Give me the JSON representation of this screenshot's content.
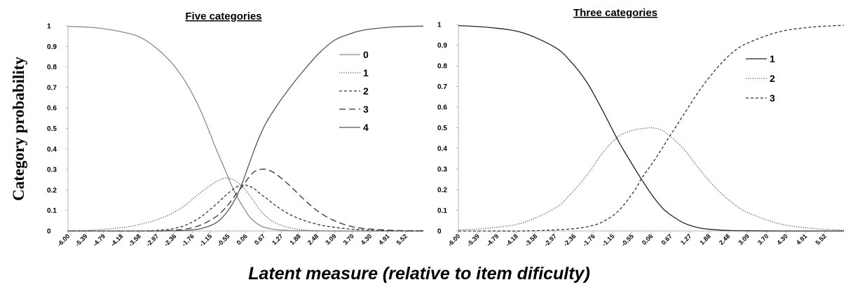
{
  "ylabel": "Category probability",
  "xlabel": "Latent measure (relative to item dificulty)",
  "chart_data": [
    {
      "type": "line",
      "title": "Five categories",
      "ylim": [
        0,
        1
      ],
      "yticks": [
        "0",
        "0.1",
        "0.2",
        "0.3",
        "0.4",
        "0.5",
        "0.6",
        "0.7",
        "0.8",
        "0.9",
        "1"
      ],
      "x_tick_labels": [
        "-6.00",
        "-5.39",
        "-4.79",
        "-4.18",
        "-3.58",
        "-2.97",
        "-2.36",
        "-1.76",
        "-1.15",
        "-0.55",
        "0.06",
        "0.67",
        "1.27",
        "1.88",
        "2.48",
        "3.09",
        "3.70",
        "4.30",
        "4.91",
        "5.52"
      ],
      "xlim": [
        -6.0,
        6.0
      ],
      "grid": false,
      "legend_placement": "top-right",
      "x": [
        -6.0,
        -5.0,
        -4.0,
        -3.5,
        -3.0,
        -2.5,
        -2.0,
        -1.5,
        -1.0,
        -0.7,
        -0.5,
        -0.3,
        -0.1,
        0.1,
        0.3,
        0.5,
        0.7,
        1.0,
        1.5,
        2.0,
        2.5,
        3.0,
        3.5,
        4.0,
        5.0,
        6.0
      ],
      "series": [
        {
          "name": "0",
          "color": "#8a8a8a",
          "dash": "solid",
          "values": [
            0.998,
            0.99,
            0.965,
            0.94,
            0.89,
            0.82,
            0.72,
            0.58,
            0.4,
            0.3,
            0.23,
            0.17,
            0.12,
            0.075,
            0.045,
            0.026,
            0.015,
            0.007,
            0.002,
            0.001,
            0,
            0,
            0,
            0,
            0,
            0
          ]
        },
        {
          "name": "1",
          "color": "#555555",
          "dash": "dotted",
          "values": [
            0.001,
            0.006,
            0.02,
            0.035,
            0.055,
            0.085,
            0.13,
            0.19,
            0.24,
            0.258,
            0.255,
            0.24,
            0.215,
            0.18,
            0.14,
            0.1,
            0.07,
            0.04,
            0.015,
            0.005,
            0.002,
            0,
            0,
            0,
            0,
            0
          ]
        },
        {
          "name": "2",
          "color": "#333333",
          "dash": "short-dash",
          "values": [
            0,
            0,
            0,
            0,
            0.003,
            0.01,
            0.03,
            0.07,
            0.13,
            0.17,
            0.195,
            0.215,
            0.225,
            0.22,
            0.205,
            0.18,
            0.16,
            0.125,
            0.08,
            0.05,
            0.03,
            0.018,
            0.01,
            0.005,
            0.001,
            0
          ]
        },
        {
          "name": "3",
          "color": "#333333",
          "dash": "long-dash",
          "values": [
            0,
            0,
            0,
            0,
            0,
            0.003,
            0.01,
            0.03,
            0.07,
            0.11,
            0.145,
            0.185,
            0.22,
            0.26,
            0.29,
            0.3,
            0.3,
            0.28,
            0.22,
            0.15,
            0.09,
            0.05,
            0.025,
            0.012,
            0.003,
            0.001
          ]
        },
        {
          "name": "4",
          "color": "#555555",
          "dash": "solid",
          "values": [
            0,
            0,
            0,
            0,
            0,
            0.001,
            0.003,
            0.012,
            0.04,
            0.08,
            0.12,
            0.17,
            0.24,
            0.32,
            0.4,
            0.47,
            0.53,
            0.6,
            0.7,
            0.79,
            0.87,
            0.93,
            0.96,
            0.98,
            0.995,
            0.999
          ]
        }
      ]
    },
    {
      "type": "line",
      "title": "Three categories",
      "ylim": [
        0,
        1
      ],
      "yticks": [
        "0",
        "0.1",
        "0.2",
        "0.3",
        "0.4",
        "0.5",
        "0.6",
        "0.7",
        "0.8",
        "0.9",
        "1"
      ],
      "x_tick_labels": [
        "-6.00",
        "-5.39",
        "-4.79",
        "-4.18",
        "-3.58",
        "-2.97",
        "-2.36",
        "-1.76",
        "-1.15",
        "-0.55",
        "0.06",
        "0.67",
        "1.27",
        "1.88",
        "2.48",
        "3.09",
        "3.70",
        "4.30",
        "4.91",
        "5.52"
      ],
      "xlim": [
        -6.0,
        6.0
      ],
      "grid": false,
      "legend_placement": "top-right",
      "x": [
        -6.0,
        -5.0,
        -4.0,
        -3.0,
        -2.5,
        -2.0,
        -1.5,
        -1.0,
        -0.5,
        -0.3,
        0.0,
        0.3,
        0.5,
        1.0,
        1.5,
        2.0,
        2.5,
        3.0,
        4.0,
        5.0,
        6.0
      ],
      "series": [
        {
          "name": "1",
          "color": "#222222",
          "dash": "solid",
          "values": [
            0.995,
            0.985,
            0.96,
            0.89,
            0.82,
            0.72,
            0.58,
            0.43,
            0.3,
            0.25,
            0.18,
            0.12,
            0.09,
            0.04,
            0.015,
            0.006,
            0.002,
            0.001,
            0,
            0,
            0
          ]
        },
        {
          "name": "2",
          "color": "#555555",
          "dash": "dotted",
          "values": [
            0.005,
            0.015,
            0.04,
            0.11,
            0.18,
            0.27,
            0.38,
            0.46,
            0.49,
            0.495,
            0.5,
            0.49,
            0.47,
            0.4,
            0.3,
            0.21,
            0.14,
            0.09,
            0.035,
            0.013,
            0.004
          ]
        },
        {
          "name": "3",
          "color": "#333333",
          "dash": "short-dash",
          "values": [
            0,
            0,
            0,
            0.005,
            0.01,
            0.02,
            0.045,
            0.1,
            0.2,
            0.255,
            0.32,
            0.39,
            0.44,
            0.56,
            0.68,
            0.78,
            0.86,
            0.91,
            0.965,
            0.987,
            0.996
          ]
        }
      ]
    }
  ]
}
